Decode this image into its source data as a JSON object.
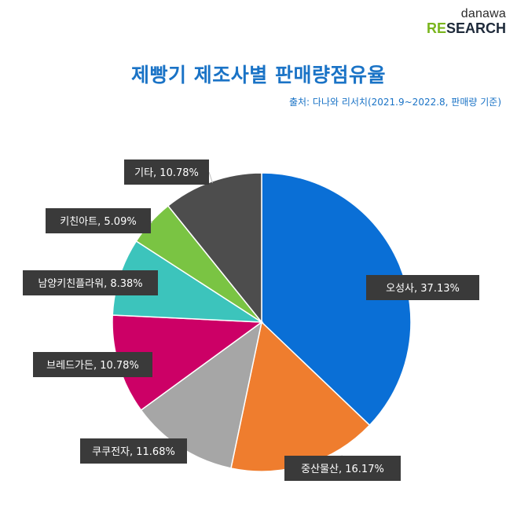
{
  "logo": {
    "top": "danawa",
    "bottom_accent": "RE",
    "bottom_rest": "SEARCH"
  },
  "title": "제빵기 제조사별 판매량점유율",
  "source": "출처: 다나와 리서치(2021.9~2022.8, 판매량 기준)",
  "chart_data": {
    "type": "pie",
    "title": "제빵기 제조사별 판매량점유율",
    "unit": "%",
    "slices": [
      {
        "name": "오성사",
        "value": 37.13,
        "label": "오성사, 37.13%",
        "color": "#0a6fd6"
      },
      {
        "name": "중산물산",
        "value": 16.17,
        "label": "중산물산, 16.17%",
        "color": "#ef7d2e"
      },
      {
        "name": "쿠쿠전자",
        "value": 11.68,
        "label": "쿠쿠전자, 11.68%",
        "color": "#a6a6a6"
      },
      {
        "name": "브레드가든",
        "value": 10.78,
        "label": "브레드가든, 10.78%",
        "color": "#cc0066"
      },
      {
        "name": "남양키친플라워",
        "value": 8.38,
        "label": "남양키친플라워, 8.38%",
        "color": "#3cc4bc"
      },
      {
        "name": "키친아트",
        "value": 5.09,
        "label": "키친아트, 5.09%",
        "color": "#7ac443"
      },
      {
        "name": "기타",
        "value": 10.78,
        "label": "기타, 10.78%",
        "color": "#4d4d4d"
      }
    ]
  }
}
